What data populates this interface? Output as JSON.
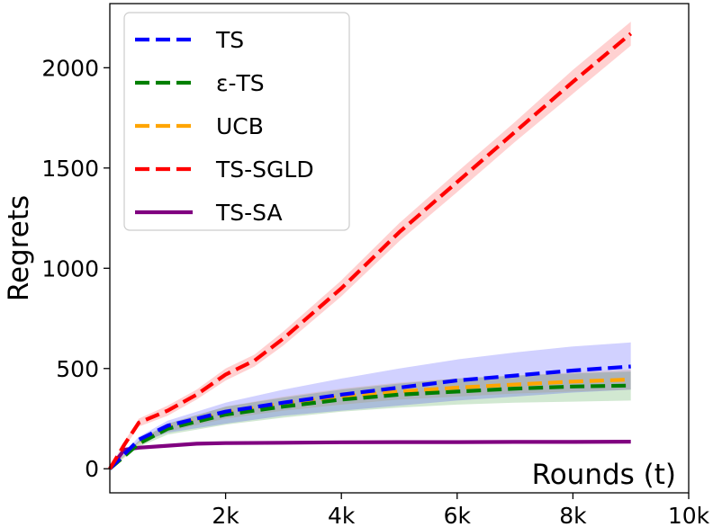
{
  "chart_data": {
    "type": "line",
    "title": "",
    "xlabel": "Rounds (t)",
    "ylabel": "Regrets",
    "xlim": [
      0,
      10000
    ],
    "ylim": [
      -120,
      2320
    ],
    "xticks": [
      2000,
      4000,
      6000,
      8000,
      10000
    ],
    "xtick_labels": [
      "2k",
      "4k",
      "6k",
      "8k",
      "10k"
    ],
    "yticks": [
      0,
      500,
      1000,
      1500,
      2000
    ],
    "ytick_labels": [
      "0",
      "500",
      "1000",
      "1500",
      "2000"
    ],
    "legend_position": "top-left",
    "series": [
      {
        "name": "TS",
        "color": "#0000ff",
        "style": "dashed",
        "x": [
          0,
          500,
          1000,
          2000,
          3000,
          4000,
          5000,
          6000,
          7000,
          8000,
          9000
        ],
        "values": [
          0,
          145,
          215,
          285,
          330,
          370,
          405,
          440,
          465,
          490,
          510
        ],
        "lower": [
          0,
          130,
          180,
          225,
          265,
          290,
          315,
          340,
          360,
          380,
          395
        ],
        "upper": [
          0,
          160,
          240,
          330,
          395,
          450,
          500,
          545,
          580,
          610,
          630
        ]
      },
      {
        "name": "ε-TS",
        "color": "#007f00",
        "style": "dashed",
        "x": [
          0,
          500,
          1000,
          2000,
          3000,
          4000,
          5000,
          6000,
          7000,
          8000,
          9000
        ],
        "values": [
          0,
          125,
          200,
          270,
          310,
          345,
          370,
          385,
          400,
          410,
          415
        ],
        "lower": [
          0,
          110,
          170,
          220,
          255,
          285,
          305,
          320,
          330,
          335,
          340
        ],
        "upper": [
          0,
          140,
          225,
          310,
          355,
          395,
          425,
          450,
          465,
          475,
          485
        ]
      },
      {
        "name": "UCB",
        "color": "#ffa500",
        "style": "dashed",
        "x": [
          0,
          500,
          1000,
          2000,
          3000,
          4000,
          5000,
          6000,
          7000,
          8000,
          9000
        ],
        "values": [
          0,
          130,
          205,
          280,
          325,
          360,
          385,
          405,
          420,
          435,
          445
        ],
        "lower": [
          0,
          120,
          185,
          250,
          290,
          320,
          345,
          360,
          375,
          385,
          395
        ],
        "upper": [
          0,
          140,
          225,
          310,
          360,
          400,
          430,
          450,
          465,
          480,
          495
        ]
      },
      {
        "name": "TS-SGLD",
        "color": "#ff0000",
        "style": "dashed",
        "x": [
          0,
          250,
          500,
          1000,
          1500,
          2000,
          2500,
          3000,
          4000,
          5000,
          6000,
          7000,
          8000,
          9000
        ],
        "values": [
          0,
          120,
          230,
          290,
          370,
          470,
          540,
          650,
          900,
          1180,
          1430,
          1680,
          1930,
          2170
        ],
        "lower": [
          0,
          105,
          210,
          265,
          345,
          440,
          510,
          615,
          860,
          1135,
          1380,
          1630,
          1870,
          2110
        ],
        "upper": [
          0,
          135,
          250,
          315,
          395,
          500,
          570,
          685,
          940,
          1225,
          1480,
          1730,
          1990,
          2230
        ]
      },
      {
        "name": "TS-SA",
        "color": "#800080",
        "style": "solid",
        "x": [
          0,
          250,
          500,
          1000,
          1500,
          2000,
          3000,
          4000,
          5000,
          6000,
          7000,
          8000,
          9000
        ],
        "values": [
          0,
          95,
          105,
          115,
          125,
          128,
          130,
          132,
          133,
          133,
          134,
          134,
          135
        ],
        "lower": [
          0,
          90,
          100,
          110,
          120,
          123,
          125,
          127,
          128,
          128,
          129,
          129,
          130
        ],
        "upper": [
          0,
          100,
          110,
          120,
          130,
          133,
          135,
          137,
          138,
          138,
          139,
          139,
          140
        ]
      }
    ]
  }
}
